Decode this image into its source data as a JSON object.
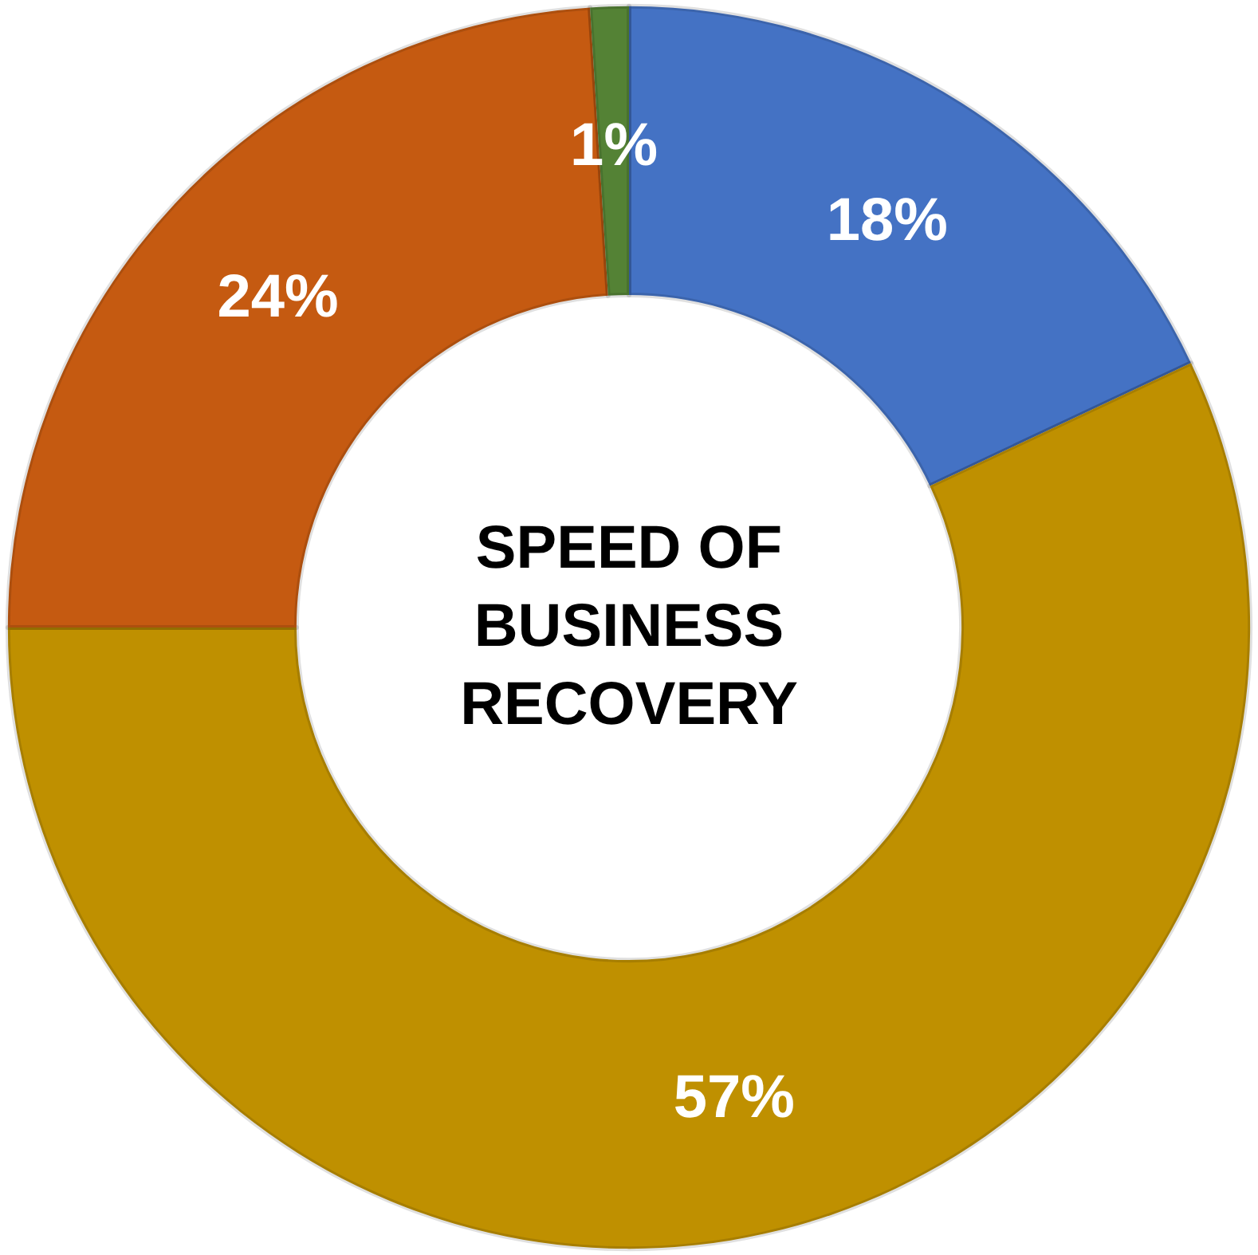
{
  "chart_data": {
    "type": "donut",
    "title": "SPEED OF BUSINESS RECOVERY",
    "categories": [
      null,
      null,
      null,
      null
    ],
    "values": [
      18,
      57,
      24,
      1
    ],
    "colors": [
      "#4472c4",
      "#bf9000",
      "#c55a11",
      "#548235"
    ],
    "value_labels": [
      "18%",
      "57%",
      "24%",
      "1%"
    ]
  }
}
